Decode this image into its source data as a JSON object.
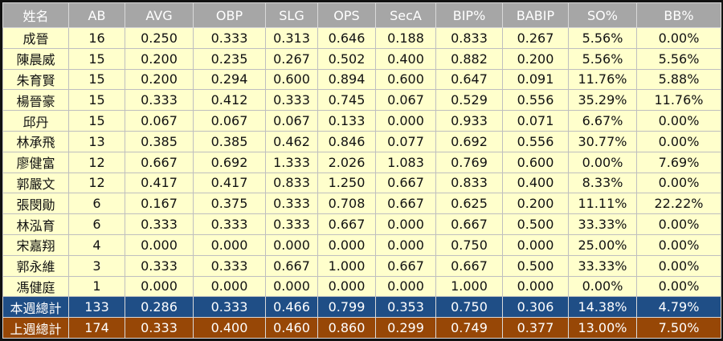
{
  "table": {
    "header": [
      "姓名",
      "AB",
      "AVG",
      "OBP",
      "SLG",
      "OPS",
      "SecA",
      "BIP%",
      "BABIP",
      "SO%",
      "BB%"
    ],
    "rows": [
      [
        "成晉",
        "16",
        "0.250",
        "0.333",
        "0.313",
        "0.646",
        "0.188",
        "0.833",
        "0.267",
        "5.56%",
        "0.00%"
      ],
      [
        "陳晨威",
        "15",
        "0.200",
        "0.235",
        "0.267",
        "0.502",
        "0.400",
        "0.882",
        "0.200",
        "5.56%",
        "5.56%"
      ],
      [
        "朱育賢",
        "15",
        "0.200",
        "0.294",
        "0.600",
        "0.894",
        "0.600",
        "0.647",
        "0.091",
        "11.76%",
        "5.88%"
      ],
      [
        "楊晉豪",
        "15",
        "0.333",
        "0.412",
        "0.333",
        "0.745",
        "0.067",
        "0.529",
        "0.556",
        "35.29%",
        "11.76%"
      ],
      [
        "邱丹",
        "15",
        "0.067",
        "0.067",
        "0.067",
        "0.133",
        "0.000",
        "0.933",
        "0.071",
        "6.67%",
        "0.00%"
      ],
      [
        "林承飛",
        "13",
        "0.385",
        "0.385",
        "0.462",
        "0.846",
        "0.077",
        "0.692",
        "0.556",
        "30.77%",
        "0.00%"
      ],
      [
        "廖健富",
        "12",
        "0.667",
        "0.692",
        "1.333",
        "2.026",
        "1.083",
        "0.769",
        "0.600",
        "0.00%",
        "7.69%"
      ],
      [
        "郭嚴文",
        "12",
        "0.417",
        "0.417",
        "0.833",
        "1.250",
        "0.667",
        "0.833",
        "0.400",
        "8.33%",
        "0.00%"
      ],
      [
        "張閔勛",
        "6",
        "0.167",
        "0.375",
        "0.333",
        "0.708",
        "0.667",
        "0.625",
        "0.200",
        "11.11%",
        "22.22%"
      ],
      [
        "林泓育",
        "6",
        "0.333",
        "0.333",
        "0.333",
        "0.667",
        "0.000",
        "0.667",
        "0.500",
        "33.33%",
        "0.00%"
      ],
      [
        "宋嘉翔",
        "4",
        "0.000",
        "0.000",
        "0.000",
        "0.000",
        "0.000",
        "0.750",
        "0.000",
        "25.00%",
        "0.00%"
      ],
      [
        "郭永維",
        "3",
        "0.333",
        "0.333",
        "0.667",
        "1.000",
        "0.667",
        "0.667",
        "0.500",
        "33.33%",
        "0.00%"
      ],
      [
        "馮健庭",
        "1",
        "0.000",
        "0.000",
        "0.000",
        "0.000",
        "0.000",
        "1.000",
        "0.000",
        "0.00%",
        "0.00%"
      ]
    ],
    "totals": [
      [
        "本週總計",
        "133",
        "0.286",
        "0.333",
        "0.466",
        "0.799",
        "0.353",
        "0.750",
        "0.306",
        "14.38%",
        "4.79%"
      ],
      [
        "上週總計",
        "174",
        "0.333",
        "0.400",
        "0.460",
        "0.860",
        "0.299",
        "0.749",
        "0.377",
        "13.00%",
        "7.50%"
      ]
    ]
  }
}
